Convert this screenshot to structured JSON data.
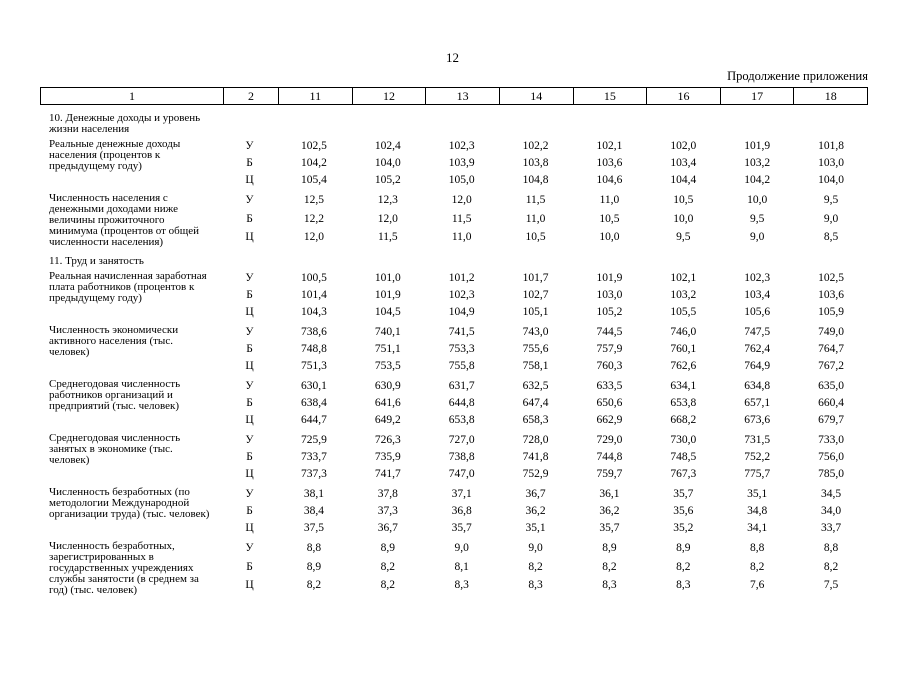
{
  "page": {
    "number": "12",
    "continuation": "Продолжение приложения"
  },
  "table": {
    "columns": [
      "1",
      "2",
      "11",
      "12",
      "13",
      "14",
      "15",
      "16",
      "17",
      "18"
    ],
    "sections": [
      {
        "heading": "10. Денежные доходы и уровень жизни населения",
        "rows": [
          {
            "label": "Реальные денежные доходы населения (процентов к предыдущему году)",
            "variants": [
              {
                "letter": "У",
                "values": [
                  "102,5",
                  "102,4",
                  "102,3",
                  "102,2",
                  "102,1",
                  "102,0",
                  "101,9",
                  "101,8"
                ]
              },
              {
                "letter": "Б",
                "values": [
                  "104,2",
                  "104,0",
                  "103,9",
                  "103,8",
                  "103,6",
                  "103,4",
                  "103,2",
                  "103,0"
                ]
              },
              {
                "letter": "Ц",
                "values": [
                  "105,4",
                  "105,2",
                  "105,0",
                  "104,8",
                  "104,6",
                  "104,4",
                  "104,2",
                  "104,0"
                ]
              }
            ]
          },
          {
            "label": "Численность населения с денежными доходами ниже величины прожиточного минимума (процентов от общей численности населения)",
            "variants": [
              {
                "letter": "У",
                "values": [
                  "12,5",
                  "12,3",
                  "12,0",
                  "11,5",
                  "11,0",
                  "10,5",
                  "10,0",
                  "9,5"
                ]
              },
              {
                "letter": "Б",
                "values": [
                  "12,2",
                  "12,0",
                  "11,5",
                  "11,0",
                  "10,5",
                  "10,0",
                  "9,5",
                  "9,0"
                ]
              },
              {
                "letter": "Ц",
                "values": [
                  "12,0",
                  "11,5",
                  "11,0",
                  "10,5",
                  "10,0",
                  "9,5",
                  "9,0",
                  "8,5"
                ]
              }
            ]
          }
        ]
      },
      {
        "heading": "11. Труд и занятость",
        "rows": [
          {
            "label": "Реальная начисленная заработная плата работников (процентов к предыдущему году)",
            "variants": [
              {
                "letter": "У",
                "values": [
                  "100,5",
                  "101,0",
                  "101,2",
                  "101,7",
                  "101,9",
                  "102,1",
                  "102,3",
                  "102,5"
                ]
              },
              {
                "letter": "Б",
                "values": [
                  "101,4",
                  "101,9",
                  "102,3",
                  "102,7",
                  "103,0",
                  "103,2",
                  "103,4",
                  "103,6"
                ]
              },
              {
                "letter": "Ц",
                "values": [
                  "104,3",
                  "104,5",
                  "104,9",
                  "105,1",
                  "105,2",
                  "105,5",
                  "105,6",
                  "105,9"
                ]
              }
            ]
          },
          {
            "label": "Численность экономически активного населения (тыс. человек)",
            "variants": [
              {
                "letter": "У",
                "values": [
                  "738,6",
                  "740,1",
                  "741,5",
                  "743,0",
                  "744,5",
                  "746,0",
                  "747,5",
                  "749,0"
                ]
              },
              {
                "letter": "Б",
                "values": [
                  "748,8",
                  "751,1",
                  "753,3",
                  "755,6",
                  "757,9",
                  "760,1",
                  "762,4",
                  "764,7"
                ]
              },
              {
                "letter": "Ц",
                "values": [
                  "751,3",
                  "753,5",
                  "755,8",
                  "758,1",
                  "760,3",
                  "762,6",
                  "764,9",
                  "767,2"
                ]
              }
            ]
          },
          {
            "label": "Среднегодовая численность работников организаций и предприятий (тыс. человек)",
            "variants": [
              {
                "letter": "У",
                "values": [
                  "630,1",
                  "630,9",
                  "631,7",
                  "632,5",
                  "633,5",
                  "634,1",
                  "634,8",
                  "635,0"
                ]
              },
              {
                "letter": "Б",
                "values": [
                  "638,4",
                  "641,6",
                  "644,8",
                  "647,4",
                  "650,6",
                  "653,8",
                  "657,1",
                  "660,4"
                ]
              },
              {
                "letter": "Ц",
                "values": [
                  "644,7",
                  "649,2",
                  "653,8",
                  "658,3",
                  "662,9",
                  "668,2",
                  "673,6",
                  "679,7"
                ]
              }
            ]
          },
          {
            "label": "Среднегодовая численность занятых в экономике (тыс. человек)",
            "variants": [
              {
                "letter": "У",
                "values": [
                  "725,9",
                  "726,3",
                  "727,0",
                  "728,0",
                  "729,0",
                  "730,0",
                  "731,5",
                  "733,0"
                ]
              },
              {
                "letter": "Б",
                "values": [
                  "733,7",
                  "735,9",
                  "738,8",
                  "741,8",
                  "744,8",
                  "748,5",
                  "752,2",
                  "756,0"
                ]
              },
              {
                "letter": "Ц",
                "values": [
                  "737,3",
                  "741,7",
                  "747,0",
                  "752,9",
                  "759,7",
                  "767,3",
                  "775,7",
                  "785,0"
                ]
              }
            ]
          },
          {
            "label": "Численность безработных (по методологии Международной организации труда) (тыс. человек)",
            "variants": [
              {
                "letter": "У",
                "values": [
                  "38,1",
                  "37,8",
                  "37,1",
                  "36,7",
                  "36,1",
                  "35,7",
                  "35,1",
                  "34,5"
                ]
              },
              {
                "letter": "Б",
                "values": [
                  "38,4",
                  "37,3",
                  "36,8",
                  "36,2",
                  "36,2",
                  "35,6",
                  "34,8",
                  "34,0"
                ]
              },
              {
                "letter": "Ц",
                "values": [
                  "37,5",
                  "36,7",
                  "35,7",
                  "35,1",
                  "35,7",
                  "35,2",
                  "34,1",
                  "33,7"
                ]
              }
            ]
          },
          {
            "label": "Численность безработных, зарегистрированных в государственных учреждениях службы занятости (в среднем за год) (тыс. человек)",
            "variants": [
              {
                "letter": "У",
                "values": [
                  "8,8",
                  "8,9",
                  "9,0",
                  "9,0",
                  "8,9",
                  "8,9",
                  "8,8",
                  "8,8"
                ]
              },
              {
                "letter": "Б",
                "values": [
                  "8,9",
                  "8,2",
                  "8,1",
                  "8,2",
                  "8,2",
                  "8,2",
                  "8,2",
                  "8,2"
                ]
              },
              {
                "letter": "Ц",
                "values": [
                  "8,2",
                  "8,2",
                  "8,3",
                  "8,3",
                  "8,3",
                  "8,3",
                  "7,6",
                  "7,5"
                ]
              }
            ]
          }
        ]
      }
    ]
  }
}
